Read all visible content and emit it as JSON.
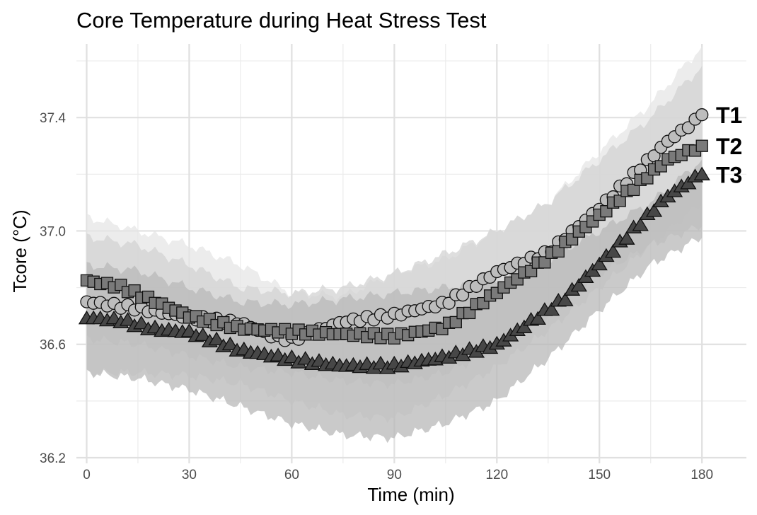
{
  "chart_data": {
    "type": "line",
    "title": "Core Temperature during Heat Stress Test",
    "xlabel": "Time (min)",
    "ylabel": "Tcore (°C)",
    "xlim": [
      -3,
      193
    ],
    "ylim": [
      36.18,
      37.66
    ],
    "x_ticks": [
      0,
      30,
      60,
      90,
      120,
      150,
      180
    ],
    "y_ticks": [
      36.2,
      36.6,
      37.0,
      37.4
    ],
    "x_tick_labels": [
      "0",
      "30",
      "60",
      "90",
      "120",
      "150",
      "180"
    ],
    "y_tick_labels": [
      "36.2",
      "36.6",
      "37.0",
      "37.4"
    ],
    "grid": true,
    "legend": "none",
    "sample_interval_min": 2,
    "series": [
      {
        "name": "T1",
        "marker": "circle",
        "color": "#bdbdbd",
        "band_color": "#e6e6e6",
        "mean": {
          "x": [
            0,
            15,
            30,
            45,
            55,
            60,
            75,
            90,
            105,
            120,
            135,
            150,
            160,
            170,
            180
          ],
          "y": [
            36.75,
            36.73,
            36.7,
            36.68,
            36.63,
            36.62,
            36.68,
            36.7,
            36.74,
            36.85,
            36.92,
            37.08,
            37.2,
            37.32,
            37.41
          ]
        },
        "band": {
          "x": [
            0,
            15,
            30,
            45,
            60,
            75,
            90,
            105,
            120,
            135,
            150,
            165,
            180
          ],
          "lower": [
            36.5,
            36.5,
            36.49,
            36.46,
            36.4,
            36.35,
            36.34,
            36.42,
            36.52,
            36.65,
            36.8,
            36.95,
            37.1
          ],
          "upper": [
            37.05,
            37.0,
            36.95,
            36.88,
            36.78,
            36.77,
            36.85,
            36.9,
            37.0,
            37.1,
            37.28,
            37.45,
            37.65
          ]
        }
      },
      {
        "name": "T2",
        "marker": "square",
        "color": "#7a7a7a",
        "band_color": "#d3d3d3",
        "mean": {
          "x": [
            0,
            10,
            20,
            30,
            45,
            60,
            75,
            90,
            105,
            120,
            135,
            150,
            160,
            170,
            180
          ],
          "y": [
            36.82,
            36.8,
            36.75,
            36.7,
            36.66,
            36.65,
            36.64,
            36.63,
            36.66,
            36.78,
            36.9,
            37.05,
            37.15,
            37.25,
            37.3
          ]
        },
        "band": {
          "x": [
            0,
            15,
            30,
            45,
            60,
            75,
            90,
            105,
            120,
            135,
            150,
            165,
            180
          ],
          "lower": [
            36.62,
            36.6,
            36.56,
            36.52,
            36.5,
            36.47,
            36.46,
            36.5,
            36.58,
            36.7,
            36.85,
            36.95,
            37.02
          ],
          "upper": [
            36.98,
            36.95,
            36.88,
            36.8,
            36.78,
            36.8,
            36.85,
            36.92,
            37.0,
            37.1,
            37.25,
            37.4,
            37.58
          ]
        }
      },
      {
        "name": "T3",
        "marker": "triangle",
        "color": "#474747",
        "band_color": "#b8b8b8",
        "mean": {
          "x": [
            0,
            10,
            20,
            30,
            45,
            60,
            75,
            90,
            105,
            120,
            130,
            140,
            150,
            160,
            170,
            180
          ],
          "y": [
            36.69,
            36.68,
            36.65,
            36.64,
            36.58,
            36.55,
            36.53,
            36.53,
            36.56,
            36.6,
            36.68,
            36.76,
            36.88,
            37.0,
            37.12,
            37.2
          ]
        },
        "band": {
          "x": [
            0,
            15,
            30,
            45,
            60,
            75,
            90,
            105,
            120,
            135,
            150,
            165,
            180
          ],
          "lower": [
            36.5,
            36.48,
            36.44,
            36.38,
            36.32,
            36.28,
            36.27,
            36.32,
            36.4,
            36.55,
            36.72,
            36.88,
            36.98
          ],
          "upper": [
            36.88,
            36.86,
            36.8,
            36.75,
            36.74,
            36.76,
            36.78,
            36.8,
            36.82,
            36.9,
            37.0,
            37.1,
            37.25
          ]
        }
      }
    ]
  }
}
